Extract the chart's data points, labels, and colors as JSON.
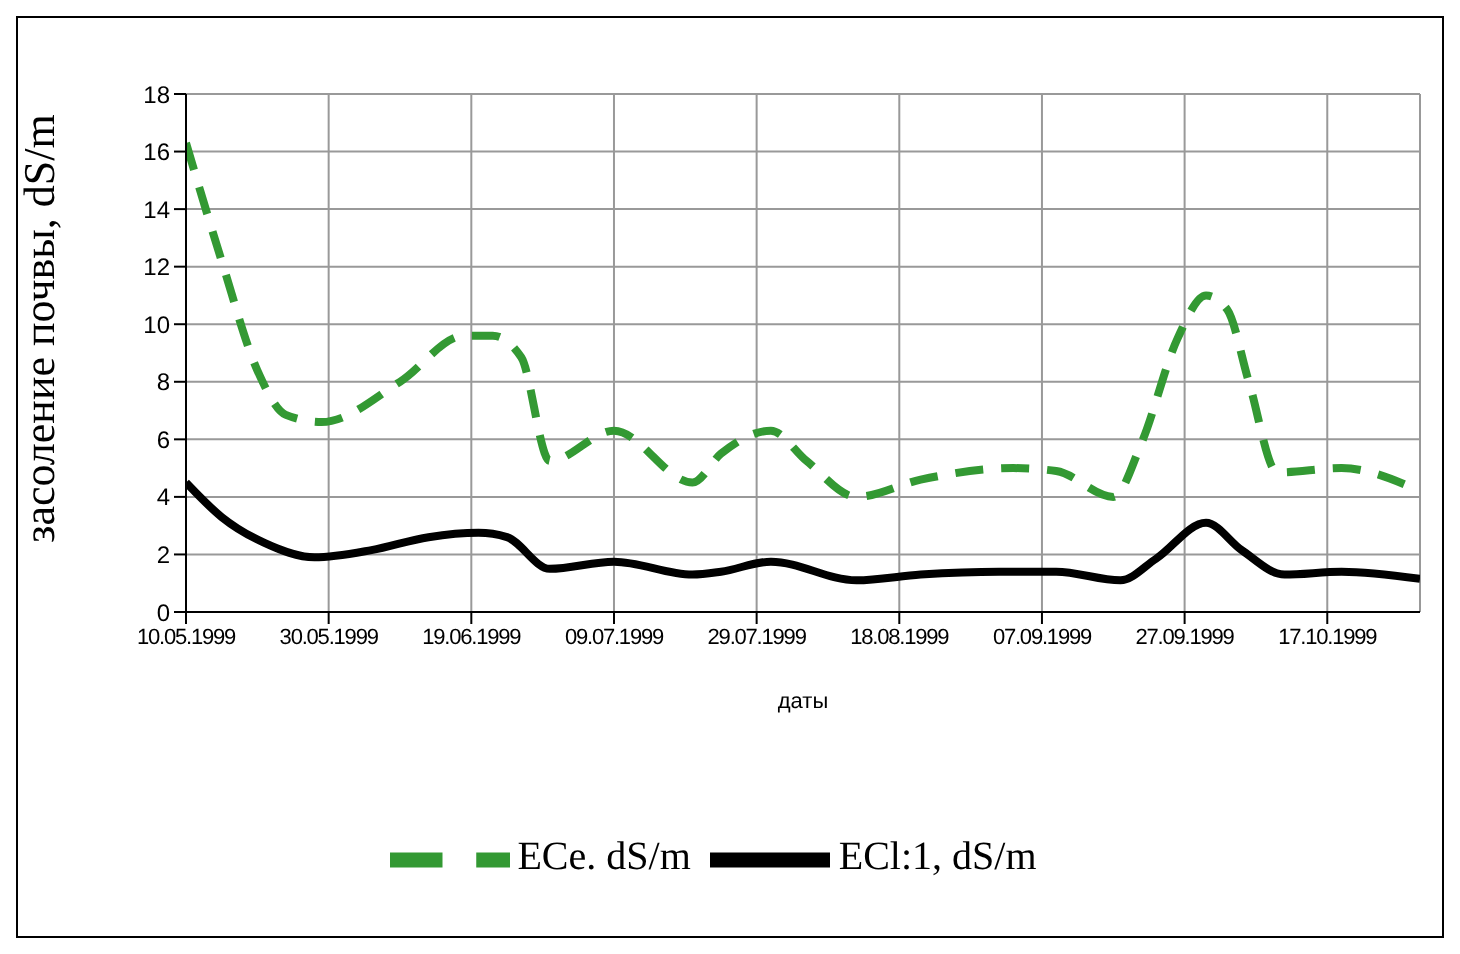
{
  "chart_data": {
    "type": "line",
    "xlabel": "даты",
    "ylabel": "засоление почвы, dS/m",
    "xlim": [
      "1999-05-10",
      "1999-10-30"
    ],
    "xticks": [
      {
        "value": "1999-05-10",
        "label": "10.05.1999"
      },
      {
        "value": "1999-05-30",
        "label": "30.05.1999"
      },
      {
        "value": "1999-06-19",
        "label": "19.06.1999"
      },
      {
        "value": "1999-07-09",
        "label": "09.07.1999"
      },
      {
        "value": "1999-07-29",
        "label": "29.07.1999"
      },
      {
        "value": "1999-08-18",
        "label": "18.08.1999"
      },
      {
        "value": "1999-09-07",
        "label": "07.09.1999"
      },
      {
        "value": "1999-09-27",
        "label": "27.09.1999"
      },
      {
        "value": "1999-10-17",
        "label": "17.10.1999"
      }
    ],
    "ylim": [
      0,
      18
    ],
    "yticks": [
      0,
      2,
      4,
      6,
      8,
      10,
      12,
      14,
      16,
      18
    ],
    "grid": true,
    "legend": "bottom",
    "marker": "none",
    "series": [
      {
        "name": "ECl:1, dS/m",
        "color": "#000000",
        "line_style": "solid",
        "x": [
          "1999-05-10",
          "1999-05-15",
          "1999-05-21",
          "1999-05-28",
          "1999-06-05",
          "1999-06-13",
          "1999-06-20",
          "1999-06-24",
          "1999-06-30",
          "1999-07-09",
          "1999-07-20",
          "1999-07-24",
          "1999-07-31",
          "1999-08-12",
          "1999-08-21",
          "1999-09-01",
          "1999-09-09",
          "1999-09-18",
          "1999-09-23",
          "1999-09-30",
          "1999-10-05",
          "1999-10-11",
          "1999-10-19",
          "1999-10-30"
        ],
        "values": [
          4.5,
          3.3,
          2.4,
          1.9,
          2.15,
          2.6,
          2.75,
          2.6,
          1.5,
          1.75,
          1.3,
          1.4,
          1.75,
          1.1,
          1.3,
          1.4,
          1.4,
          1.1,
          1.85,
          3.1,
          2.15,
          1.3,
          1.4,
          1.15
        ]
      },
      {
        "name": "ECe. dS/m",
        "color": "#339933",
        "line_style": "dashed",
        "x": [
          "1999-05-10",
          "1999-05-15",
          "1999-05-20",
          "1999-05-24",
          "1999-05-29",
          "1999-06-09",
          "1999-06-18",
          "1999-06-22",
          "1999-06-26",
          "1999-06-30",
          "1999-07-09",
          "1999-07-20",
          "1999-07-24",
          "1999-07-31",
          "1999-08-05",
          "1999-08-12",
          "1999-08-21",
          "1999-09-03",
          "1999-09-09",
          "1999-09-17",
          "1999-09-21",
          "1999-09-26",
          "1999-09-30",
          "1999-10-03",
          "1999-10-06",
          "1999-10-10",
          "1999-10-19",
          "1999-10-30"
        ],
        "values": [
          16.3,
          12.2,
          8.4,
          6.85,
          6.6,
          8.0,
          9.6,
          9.6,
          8.85,
          5.25,
          6.3,
          4.5,
          5.5,
          6.3,
          5.25,
          4.0,
          4.6,
          5.0,
          4.9,
          4.0,
          5.9,
          9.5,
          11.0,
          10.5,
          8.0,
          4.85,
          5.0,
          4.2
        ]
      }
    ]
  }
}
